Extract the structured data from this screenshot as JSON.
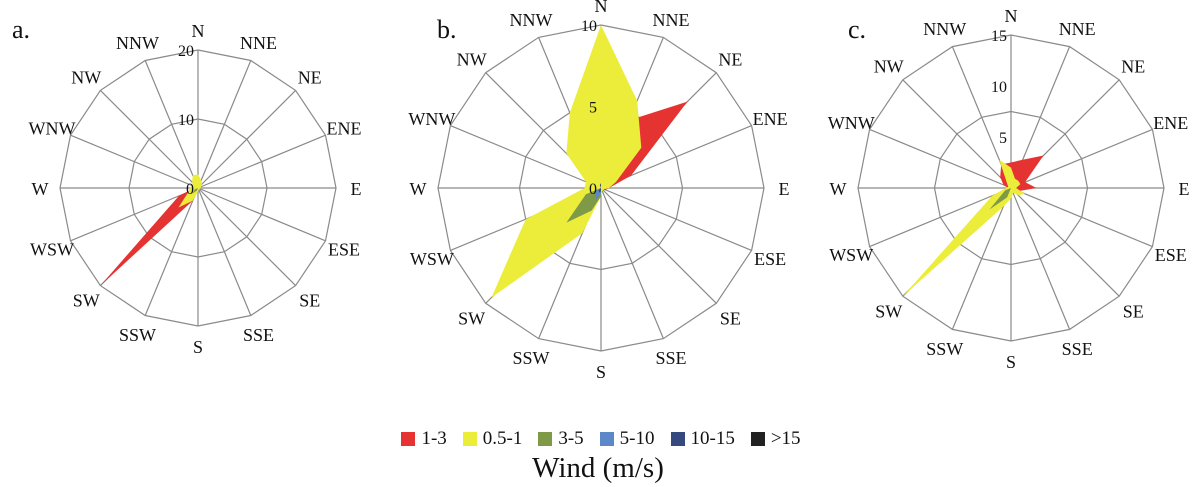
{
  "chart_data": [
    {
      "panel_label": "a.",
      "type": "radar",
      "directions": [
        "N",
        "NNE",
        "NE",
        "ENE",
        "E",
        "ESE",
        "SE",
        "SSE",
        "S",
        "SSW",
        "SW",
        "WSW",
        "W",
        "WNW",
        "NW",
        "NNW"
      ],
      "radial_ticks": [
        "0",
        "10",
        "20"
      ],
      "rmax": 20,
      "series": [
        {
          "name": "1-3",
          "values": [
            1,
            0.5,
            0.5,
            0.3,
            0.2,
            0.1,
            0.1,
            0.1,
            0.2,
            2,
            20,
            3,
            0.5,
            0.2,
            0.2,
            0.5
          ]
        },
        {
          "name": "0.5-1",
          "values": [
            2,
            1.2,
            0.8,
            0.5,
            0.4,
            0.3,
            0.3,
            0.3,
            0.5,
            2,
            4,
            1.5,
            1.2,
            0.8,
            1.2,
            2
          ]
        },
        {
          "name": "3-5",
          "values": [
            0,
            0,
            0,
            0,
            0,
            0,
            0,
            0,
            0,
            0.4,
            1.2,
            0.5,
            0,
            0,
            0,
            0
          ]
        }
      ]
    },
    {
      "panel_label": "b.",
      "type": "radar",
      "directions": [
        "N",
        "NNE",
        "NE",
        "ENE",
        "E",
        "ESE",
        "SE",
        "SSE",
        "S",
        "SSW",
        "SW",
        "WSW",
        "W",
        "WNW",
        "NW",
        "NNW"
      ],
      "radial_ticks": [
        "0",
        "5",
        "10"
      ],
      "rmax": 10,
      "series": [
        {
          "name": "1-3",
          "values": [
            4,
            4.5,
            7.5,
            2,
            0.5,
            0.3,
            0.2,
            0.2,
            0.3,
            0.3,
            0.3,
            0.3,
            0.3,
            0.3,
            3,
            3
          ]
        },
        {
          "name": "0.5-1",
          "values": [
            10,
            5.8,
            3.5,
            1,
            0.5,
            0.2,
            0.2,
            0.2,
            0.5,
            3,
            9.5,
            5,
            1,
            1,
            3,
            5
          ]
        },
        {
          "name": "3-5",
          "values": [
            0,
            0,
            0,
            0,
            0,
            0,
            0,
            0,
            0.5,
            1.5,
            3,
            1,
            0,
            0,
            0,
            0
          ]
        },
        {
          "name": "5-10",
          "values": [
            0,
            0,
            0,
            0,
            0,
            0,
            0,
            0,
            0.3,
            0.8,
            0.5,
            0.3,
            0,
            0,
            0,
            0
          ]
        },
        {
          "name": "10-15",
          "values": [
            0.3,
            0,
            0,
            0,
            0,
            0,
            0,
            0,
            0.2,
            0.3,
            0.2,
            0,
            0,
            0,
            0,
            0.2
          ]
        }
      ]
    },
    {
      "panel_label": "c.",
      "type": "radar",
      "directions": [
        "N",
        "NNE",
        "NE",
        "ENE",
        "E",
        "ESE",
        "SE",
        "SSE",
        "S",
        "SSW",
        "SW",
        "WSW",
        "W",
        "WNW",
        "NW",
        "NNW"
      ],
      "radial_ticks": [
        "5",
        "10",
        "15"
      ],
      "rmax": 15,
      "series": [
        {
          "name": "1-3",
          "values": [
            2.5,
            3,
            4.5,
            1.5,
            2.5,
            0.8,
            0.5,
            0.3,
            0.5,
            0.5,
            0.5,
            0.3,
            0.3,
            0.8,
            1.5,
            2.5
          ]
        },
        {
          "name": "0.5-1",
          "values": [
            2,
            1,
            1,
            1,
            0.5,
            1.5,
            1,
            0.5,
            1,
            2,
            15,
            2,
            0.5,
            0.3,
            0.5,
            3
          ]
        },
        {
          "name": "3-5",
          "values": [
            0,
            0,
            0,
            0,
            0,
            0,
            0,
            0,
            0,
            1,
            3,
            0.6,
            0,
            0,
            0,
            0
          ]
        }
      ]
    }
  ],
  "legend": {
    "items": [
      {
        "label": "1-3",
        "color": "#e43331"
      },
      {
        "label": "0.5-1",
        "color": "#eced3a"
      },
      {
        "label": "3-5",
        "color": "#7f9a47"
      },
      {
        "label": "5-10",
        "color": "#5c87c8"
      },
      {
        "label": "10-15",
        "color": "#34497d"
      },
      {
        "label": ">15",
        "color": "#222222"
      }
    ],
    "title": "Wind (m/s)"
  }
}
